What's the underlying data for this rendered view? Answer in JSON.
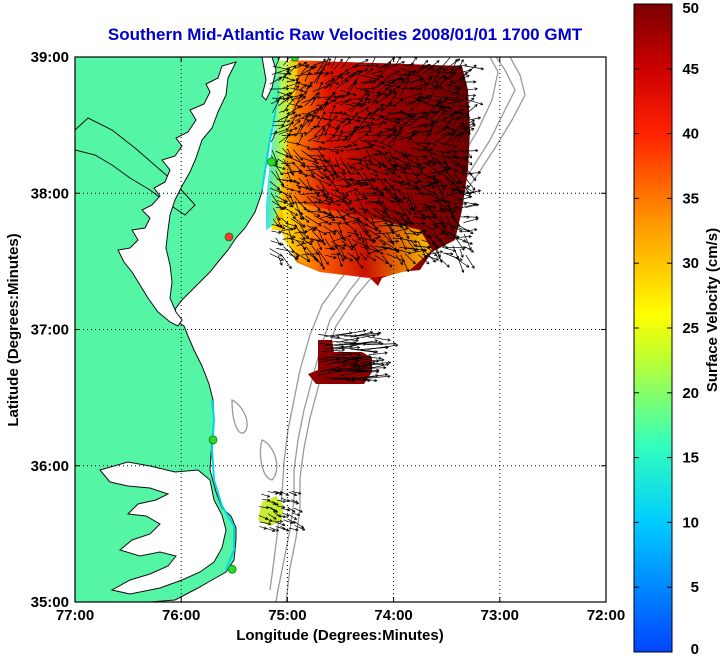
{
  "title": "Southern Mid-Atlantic Raw Velocities 2008/01/01 1700 GMT",
  "colors": {
    "title": "#0000cc",
    "land": "#55f5a6",
    "land_edge": "#00d8e8",
    "coast": "#111111",
    "bathymetry": "#9a9a9a",
    "arrows": "#000000",
    "station": "#22dd22",
    "station_alt": "#ff3333"
  },
  "chart_data": {
    "type": "heatmap",
    "title": "Southern Mid-Atlantic Raw Velocities 2008/01/01 1700 GMT",
    "xlabel": "Longitude (Degrees:Minutes)",
    "ylabel": "Latitude (Degrees:Minutes)",
    "x_ticks": [
      "77:00",
      "76:00",
      "75:00",
      "74:00",
      "73:00",
      "72:00"
    ],
    "y_ticks": [
      "39:00",
      "38:00",
      "37:00",
      "36:00",
      "35:00"
    ],
    "xlim": [
      -77,
      -72
    ],
    "ylim": [
      35,
      39
    ],
    "grid": true,
    "colorbar": {
      "label": "Surface Velocity (cm/s)",
      "range": [
        0,
        50
      ],
      "ticks": [
        "50",
        "45",
        "40",
        "35",
        "30",
        "25",
        "20",
        "15",
        "10",
        "5",
        "0"
      ]
    },
    "regions": [
      {
        "lon_range": [
          -75.15,
          -73.3
        ],
        "lat_range": [
          37.55,
          38.95
        ],
        "speed_min": 10,
        "speed_max": 50
      },
      {
        "lon_range": [
          -74.7,
          -74.25
        ],
        "lat_range": [
          36.65,
          36.95
        ],
        "speed_min": 48,
        "speed_max": 50
      },
      {
        "lon_range": [
          -75.25,
          -74.95
        ],
        "lat_range": [
          35.55,
          35.8
        ],
        "speed_min": 22,
        "speed_max": 28
      }
    ],
    "stations": [
      {
        "lon": -74.93,
        "lat": 39.0
      },
      {
        "lon": -75.15,
        "lat": 38.23
      },
      {
        "lon": -75.55,
        "lat": 37.68
      },
      {
        "lon": -75.7,
        "lat": 36.19
      },
      {
        "lon": -75.52,
        "lat": 35.24
      }
    ]
  }
}
